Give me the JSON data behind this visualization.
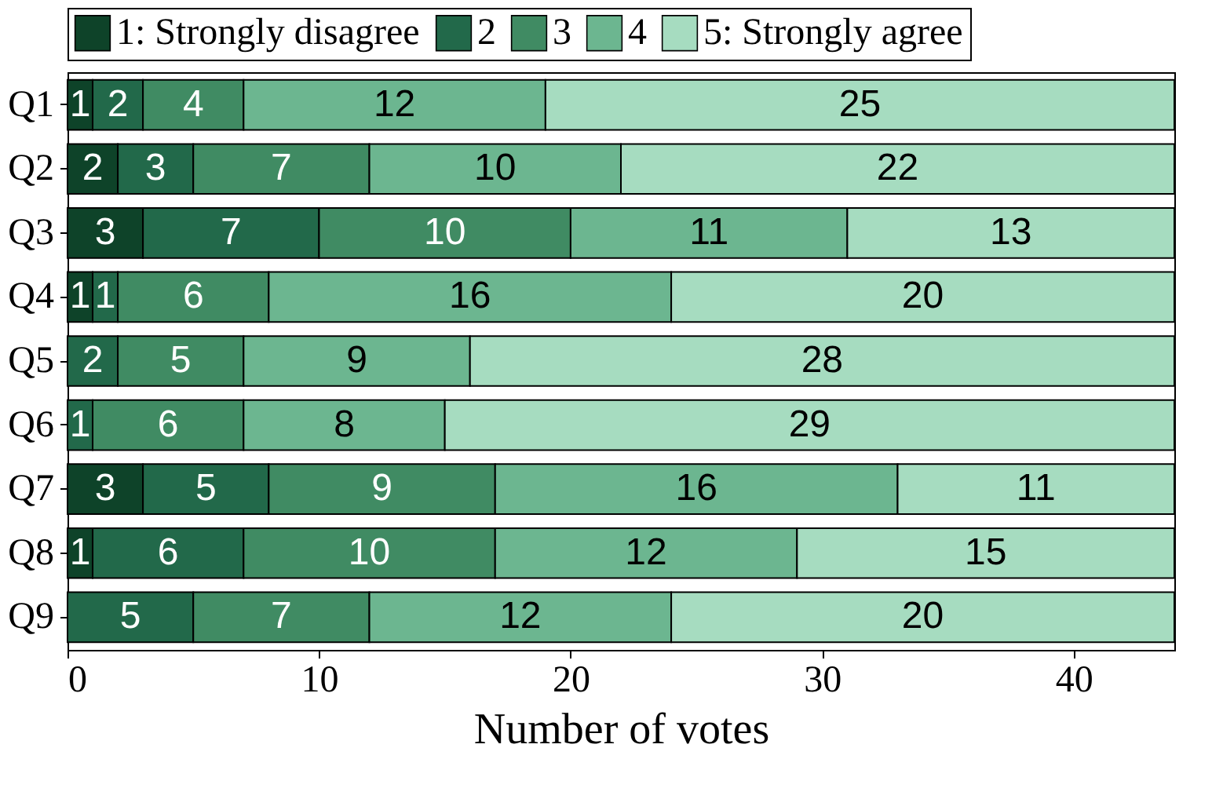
{
  "chart_data": {
    "type": "bar",
    "orientation": "horizontal",
    "stacked": true,
    "xlabel": "Number of votes",
    "categories": [
      "Q1",
      "Q2",
      "Q3",
      "Q4",
      "Q5",
      "Q6",
      "Q7",
      "Q8",
      "Q9"
    ],
    "series": [
      {
        "name": "1: Strongly disagree",
        "color": "#0e4329",
        "values": [
          1,
          2,
          3,
          1,
          0,
          0,
          3,
          1,
          0
        ],
        "value_labels": [
          "1",
          "2",
          "3",
          "1",
          null,
          null,
          "3",
          "1",
          null
        ]
      },
      {
        "name": "2",
        "color": "#22694a",
        "values": [
          2,
          3,
          7,
          1,
          2,
          1,
          5,
          6,
          5
        ],
        "value_labels": [
          "2",
          "3",
          "7",
          "1",
          "2",
          "1",
          "5",
          "6",
          "5"
        ]
      },
      {
        "name": "3",
        "color": "#408b63",
        "values": [
          4,
          7,
          10,
          6,
          5,
          6,
          9,
          10,
          7
        ],
        "value_labels": [
          "4",
          "7",
          "10",
          "6",
          "5",
          "6",
          "9",
          "10",
          "7"
        ]
      },
      {
        "name": "4",
        "color": "#6cb690",
        "values": [
          12,
          10,
          11,
          16,
          9,
          8,
          16,
          12,
          12
        ],
        "value_labels": [
          "12",
          "10",
          "11",
          "16",
          "9",
          "8",
          "16",
          "12",
          "12"
        ]
      },
      {
        "name": "5: Strongly agree",
        "color": "#a6dcc0",
        "values": [
          25,
          22,
          13,
          20,
          28,
          29,
          11,
          15,
          20
        ],
        "value_labels": [
          "25",
          "22",
          "13",
          "20",
          "28",
          "29",
          "11",
          "15",
          "20"
        ]
      }
    ],
    "xlim": [
      0,
      44
    ],
    "xticks": [
      0,
      10,
      20,
      30,
      40
    ],
    "legend": "top",
    "grid": false
  }
}
